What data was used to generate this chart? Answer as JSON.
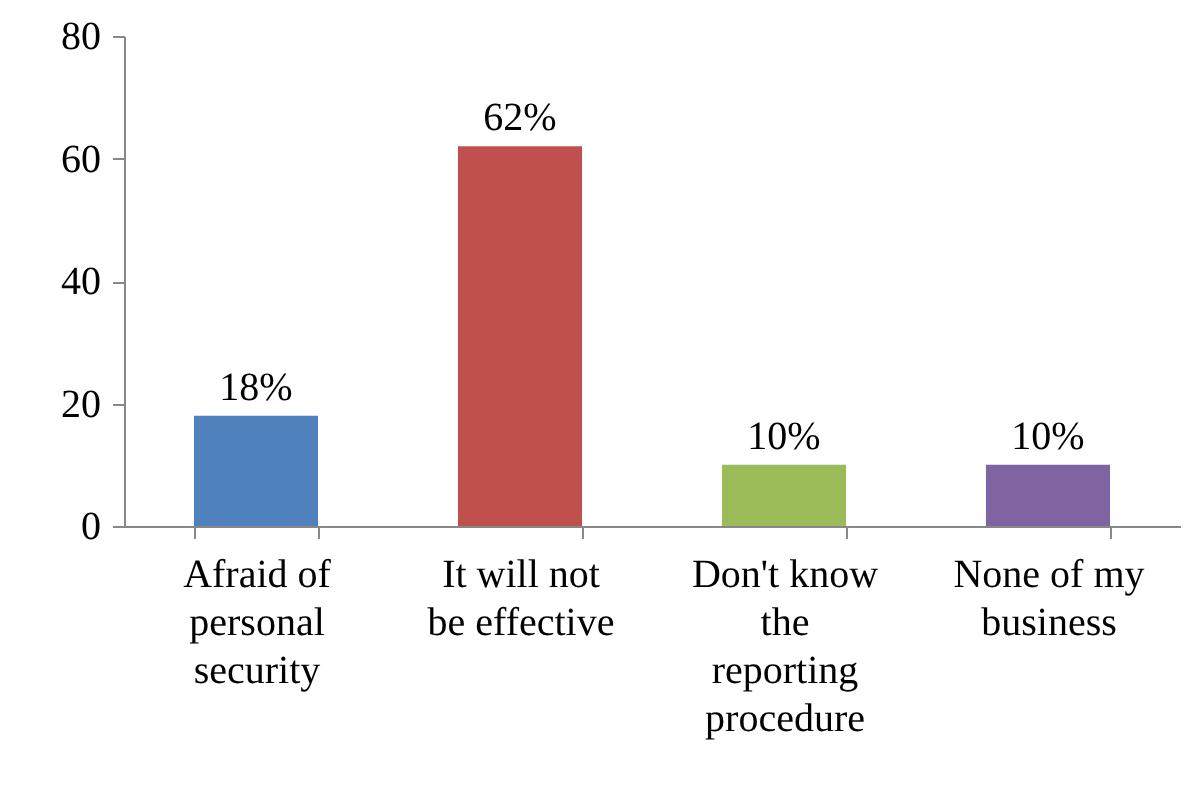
{
  "chart_data": {
    "type": "bar",
    "categories": [
      "Afraid of personal security",
      "It will not be effective",
      "Don't know the reporting procedure",
      "None of my business"
    ],
    "values": [
      18,
      62,
      10,
      10
    ],
    "colors": [
      "#4f81bd",
      "#c0504d",
      "#9bbb59",
      "#8064a2"
    ],
    "value_labels": [
      "18%",
      "62%",
      "10%",
      "10%"
    ],
    "ylim": [
      0,
      80
    ],
    "yticks": [
      0,
      20,
      40,
      60,
      80
    ],
    "grid": false
  }
}
